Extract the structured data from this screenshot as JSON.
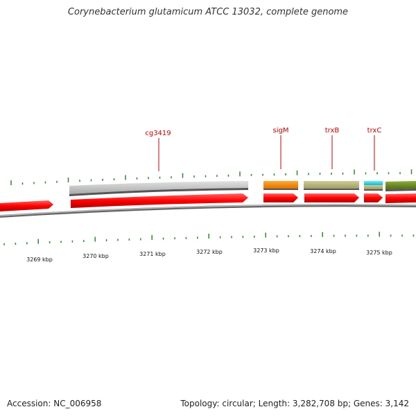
{
  "title": "Corynebacterium glutamicum ATCC 13032, complete genome",
  "footer": {
    "accession": "Accession: NC_006958",
    "summary": "Topology: circular; Length: 3,282,708 bp; Genes: 3,142"
  },
  "colors": {
    "cds": "#ff0000",
    "label": "#cc0000",
    "tick": "#2a8a2a",
    "backbone": "#888888",
    "gray_feature": "#bbbbbb",
    "orange_feature": "#ff8c00",
    "khaki_feature": "#b5b37a",
    "cyan_feature": "#22ddee",
    "olive_feature": "#6b8e23"
  },
  "gene_labels": [
    "cg3419",
    "sigM",
    "trxB",
    "trxC"
  ],
  "kbp_labels": [
    "3269 kbp",
    "3270 kbp",
    "3271 kbp",
    "3272 kbp",
    "3273 kbp",
    "3274 kbp",
    "3275 kbp"
  ]
}
